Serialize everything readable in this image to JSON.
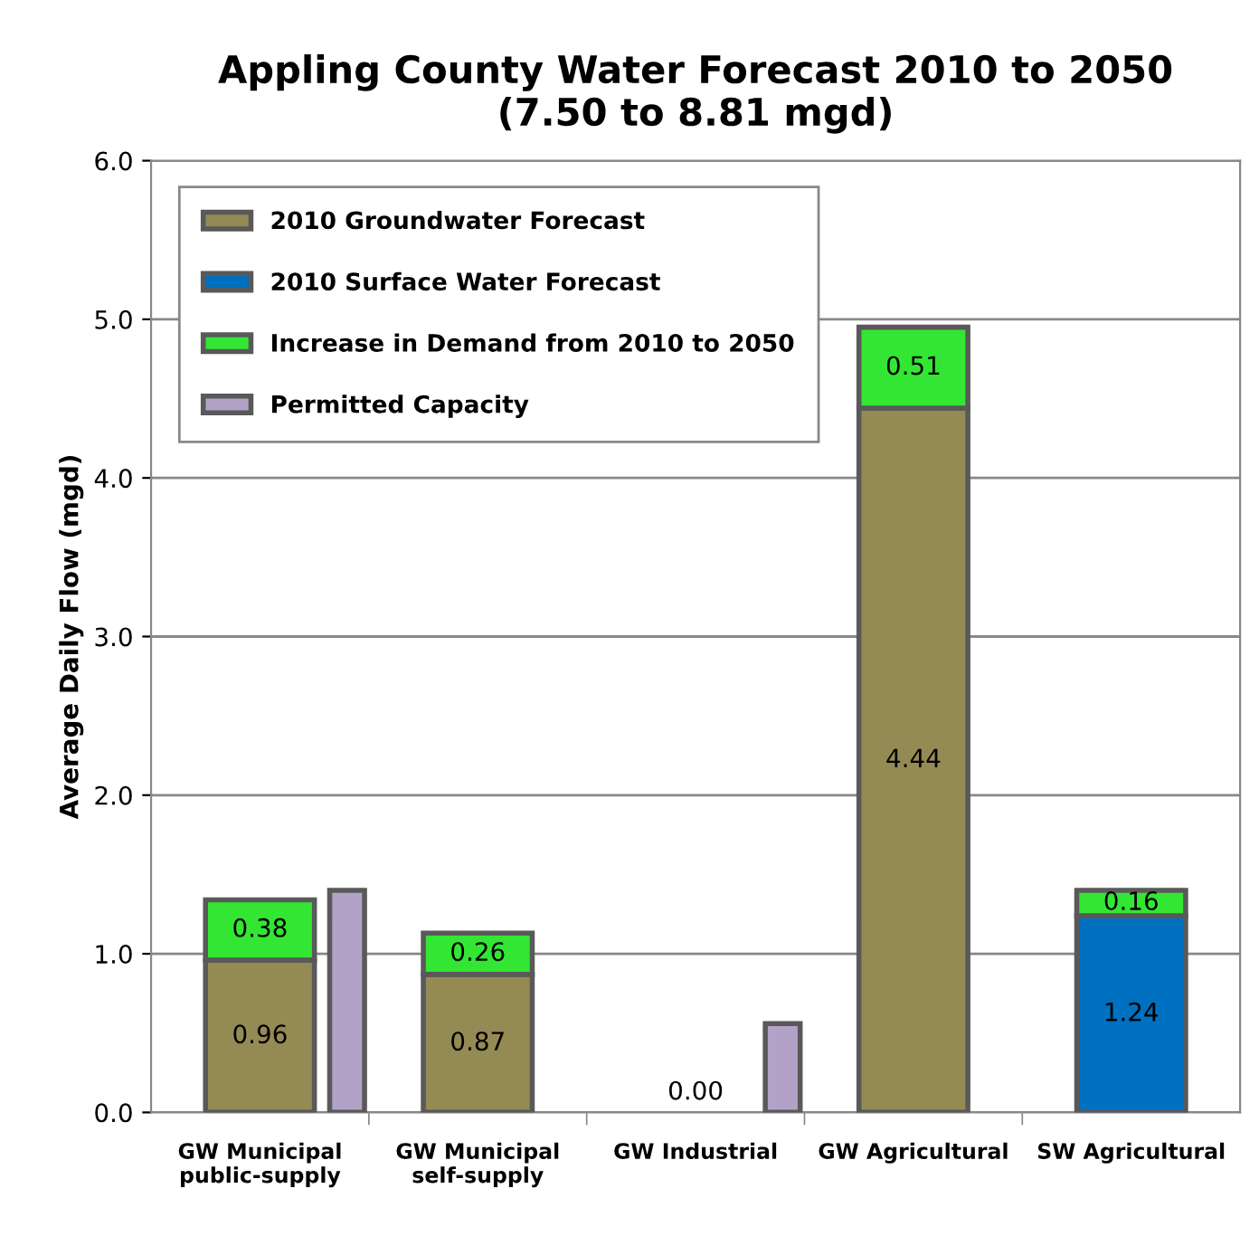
{
  "chart_data": {
    "type": "bar",
    "title": "Appling County Water Forecast 2010 to 2050\n(7.50 to 8.81 mgd)",
    "ylabel": "Average Daily Flow (mgd)",
    "categories": [
      "GW Municipal\npublic-supply",
      null,
      "GW Municipal\nself-supply",
      null,
      "GW Industrial",
      null,
      "GW Agricultural",
      null,
      "SW Agricultural",
      null
    ],
    "stacked": true,
    "series": [
      {
        "name": "2010 Groundwater Forecast",
        "color": "#948a54",
        "values": [
          0.96,
          null,
          0.87,
          null,
          0.0,
          null,
          4.44,
          null,
          null,
          null
        ],
        "value_labels": [
          "0.96",
          null,
          "0.87",
          null,
          "0.00",
          null,
          "4.44",
          null,
          null,
          null
        ]
      },
      {
        "name": "2010 Surface Water Forecast",
        "color": "#0070c0",
        "values": [
          null,
          null,
          null,
          null,
          null,
          null,
          null,
          null,
          1.24,
          null
        ],
        "value_labels": [
          null,
          null,
          null,
          null,
          null,
          null,
          null,
          null,
          "1.24",
          null
        ]
      },
      {
        "name": "Increase in Demand from 2010 to 2050",
        "color": "#33e633",
        "values": [
          0.38,
          null,
          0.26,
          null,
          null,
          null,
          0.51,
          null,
          0.16,
          null
        ],
        "value_labels": [
          "0.38",
          null,
          "0.26",
          null,
          null,
          null,
          "0.51",
          null,
          "0.16",
          null
        ]
      },
      {
        "name": "Permitted Capacity",
        "color": "#b3a2c7",
        "values": [
          null,
          1.4,
          null,
          null,
          null,
          0.56,
          null,
          null,
          null,
          null
        ]
      }
    ],
    "ylim": [
      0,
      6
    ],
    "yticks": [
      {
        "value": 0,
        "label": "0.0"
      },
      {
        "value": 1,
        "label": "1.0"
      },
      {
        "value": 2,
        "label": "2.0"
      },
      {
        "value": 3,
        "label": "3.0"
      },
      {
        "value": 4,
        "label": "4.0"
      },
      {
        "value": 5,
        "label": "5.0"
      },
      {
        "value": 6,
        "label": "6.0"
      }
    ],
    "grid": "y",
    "legend": "top left"
  }
}
